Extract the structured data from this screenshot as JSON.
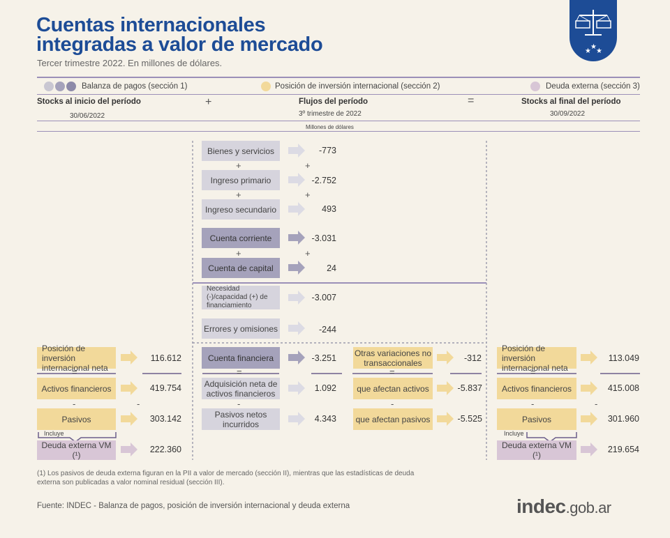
{
  "header": {
    "title_line1": "Cuentas internacionales",
    "title_line2": "integradas a valor de mercado",
    "subtitle": "Tercer trimestre 2022. En millones de dólares."
  },
  "legend": {
    "bp": "Balanza de pagos (sección 1)",
    "pii": "Posición de inversión internacional (sección 2)",
    "deuda": "Deuda externa (sección 3)"
  },
  "columns": {
    "start_title": "Stocks al inicio del período",
    "start_date": "30/06/2022",
    "plus": "+",
    "flows_title": "Flujos del período",
    "flows_sub": "3º trimestre de 2022",
    "equals": "=",
    "end_title": "Stocks al final del período",
    "end_date": "30/09/2022",
    "units": "Millones de dólares"
  },
  "flows": {
    "bienes": {
      "label": "Bienes y servicios",
      "value": "-773"
    },
    "primario": {
      "label": "Ingreso primario",
      "value": "-2.752"
    },
    "secundario": {
      "label": "Ingreso secundario",
      "value": "493"
    },
    "corriente": {
      "label": "Cuenta corriente",
      "value": "-3.031"
    },
    "capital": {
      "label": "Cuenta de capital",
      "value": "24"
    },
    "necesidad": {
      "label": "Necesidad (-)/capacidad (+) de financiamiento",
      "value": "-3.007"
    },
    "errores": {
      "label": "Errores y omisiones",
      "value": "-244"
    },
    "financiera": {
      "label": "Cuenta financiera",
      "value": "-3.251"
    },
    "adquisicion": {
      "label": "Adquisición neta de activos financieros",
      "value": "1.092"
    },
    "pasivos_netos": {
      "label": "Pasivos netos incurridos",
      "value": "4.343"
    }
  },
  "otras": {
    "main": {
      "label": "Otras variaciones no transaccionales",
      "value": "-312"
    },
    "activos": {
      "label": "que afectan activos",
      "value": "-5.837"
    },
    "pasivos": {
      "label": "que afectan pasivos",
      "value": "-5.525"
    }
  },
  "start": {
    "pii": {
      "label": "Posición de inversión internacional neta",
      "value": "116.612"
    },
    "activos": {
      "label": "Activos financieros",
      "value": "419.754"
    },
    "pasivos": {
      "label": "Pasivos",
      "value": "303.142"
    },
    "incluye": "Incluye",
    "deuda": {
      "label": "Deuda externa VM (¹)",
      "value": "222.360"
    }
  },
  "end": {
    "pii": {
      "label": "Posición de inversión internacional neta",
      "value": "113.049"
    },
    "activos": {
      "label": "Activos financieros",
      "value": "415.008"
    },
    "pasivos": {
      "label": "Pasivos",
      "value": "301.960"
    },
    "incluye": "Incluye",
    "deuda": {
      "label": "Deuda externa VM (¹)",
      "value": "219.654"
    }
  },
  "ops": {
    "plus": "+",
    "equals": "=",
    "minus": "-"
  },
  "footnote": "(1) Los pasivos de deuda externa figuran en la PII a valor de mercado (sección II), mientras que las estadísticas de deuda externa son publicadas a valor nominal residual (sección III).",
  "source": "Fuente: INDEC -  Balanza de pagos, posición de inversión internacional y deuda externa",
  "logo": {
    "brand": "indec",
    "domain": ".gob.ar"
  },
  "colors": {
    "title": "#1d4c96",
    "bp_light": "#d6d4dd",
    "bp_dark": "#a5a2bb",
    "pii": "#f2d99a",
    "deuda": "#d8c6d6",
    "rule": "#9b8fb8"
  }
}
